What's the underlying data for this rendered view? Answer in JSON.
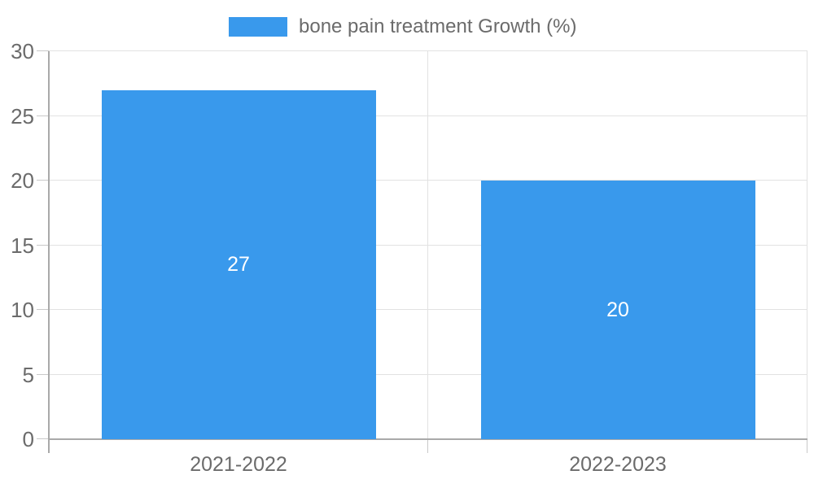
{
  "chart_data": {
    "type": "bar",
    "title": "",
    "legend": {
      "label": "bone pain treatment Growth (%)",
      "position": "top-center"
    },
    "categories": [
      "2021-2022",
      "2022-2023"
    ],
    "series": [
      {
        "name": "bone pain treatment Growth (%)",
        "values": [
          27,
          20
        ]
      }
    ],
    "bar_value_labels": [
      "27",
      "20"
    ],
    "xlabel": "",
    "ylabel": "",
    "ylim": [
      0,
      30
    ],
    "yticks": [
      0,
      5,
      10,
      15,
      20,
      25,
      30
    ],
    "grid": "on",
    "colors": {
      "bar": "#3999EC",
      "grid": "#E2E2E2",
      "axis": "#A9A9A9",
      "tick": "#C9C9C9",
      "label_text": "#6B6B6B",
      "value_text": "#FFFFFF",
      "background": "#FFFFFF"
    }
  }
}
